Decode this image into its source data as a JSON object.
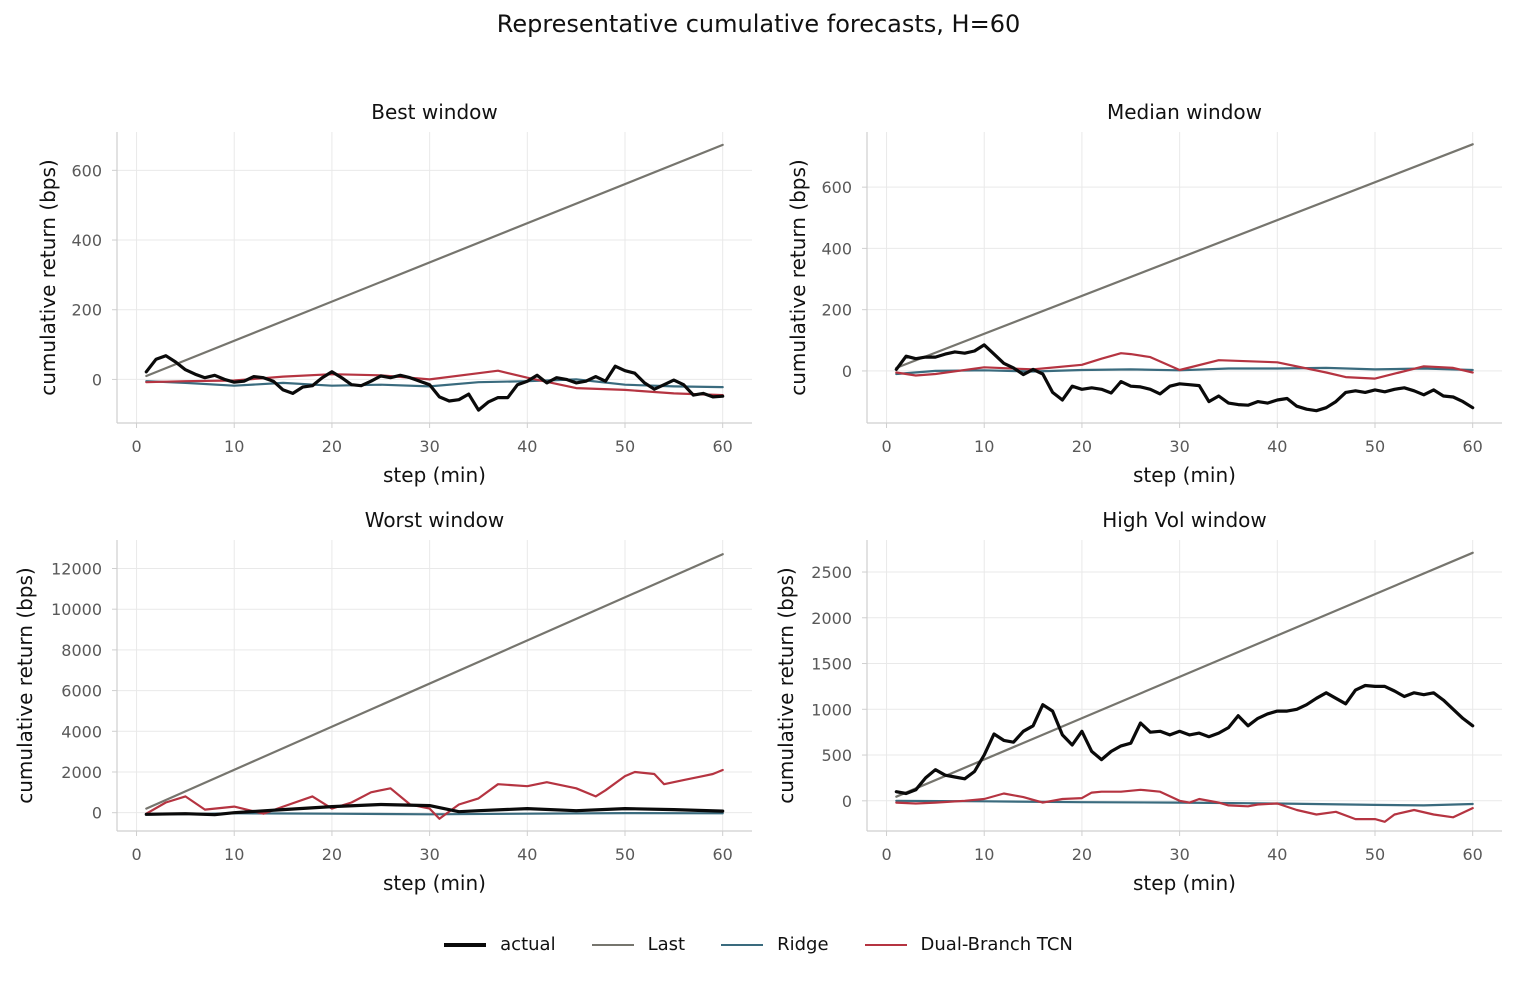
{
  "chart_data": [
    {
      "type": "line",
      "title": "Best window",
      "xlabel": "step (min)",
      "ylabel": "cumulative return (bps)",
      "xlim": [
        -2,
        63
      ],
      "ylim": [
        -125,
        710
      ],
      "xticks": [
        0,
        10,
        20,
        30,
        40,
        50,
        60
      ],
      "yticks": [
        0,
        200,
        400,
        600
      ],
      "grid": true,
      "series": [
        {
          "name": "actual",
          "x": [
            1,
            2,
            3,
            4,
            5,
            6,
            7,
            8,
            9,
            10,
            11,
            12,
            13,
            14,
            15,
            16,
            17,
            18,
            19,
            20,
            21,
            22,
            23,
            24,
            25,
            26,
            27,
            28,
            29,
            30,
            31,
            32,
            33,
            34,
            35,
            36,
            37,
            38,
            39,
            40,
            41,
            42,
            43,
            44,
            45,
            46,
            47,
            48,
            49,
            50,
            51,
            52,
            53,
            54,
            55,
            56,
            57,
            58,
            59,
            60
          ],
          "y": [
            22,
            58,
            68,
            50,
            28,
            15,
            5,
            12,
            0,
            -8,
            -5,
            8,
            5,
            -5,
            -30,
            -40,
            -22,
            -18,
            5,
            22,
            5,
            -15,
            -18,
            -5,
            10,
            5,
            12,
            5,
            -5,
            -15,
            -50,
            -62,
            -58,
            -42,
            -88,
            -65,
            -52,
            -52,
            -15,
            -5,
            12,
            -10,
            5,
            0,
            -10,
            -5,
            8,
            -5,
            38,
            25,
            18,
            -10,
            -28,
            -15,
            -2,
            -15,
            -45,
            -40,
            -50,
            -48
          ]
        },
        {
          "name": "Last",
          "x": [
            1,
            60
          ],
          "y": [
            10,
            673
          ]
        },
        {
          "name": "Ridge",
          "x": [
            1,
            5,
            10,
            15,
            20,
            25,
            30,
            35,
            40,
            45,
            50,
            55,
            60
          ],
          "y": [
            -5,
            -10,
            -18,
            -10,
            -18,
            -15,
            -20,
            -8,
            -5,
            0,
            -15,
            -20,
            -22
          ]
        },
        {
          "name": "Dual-Branch TCN",
          "x": [
            1,
            5,
            10,
            15,
            20,
            25,
            30,
            35,
            37,
            40,
            45,
            50,
            55,
            60
          ],
          "y": [
            -8,
            -5,
            -3,
            8,
            15,
            12,
            0,
            18,
            25,
            5,
            -25,
            -30,
            -40,
            -45
          ]
        }
      ]
    },
    {
      "type": "line",
      "title": "Median window",
      "xlabel": "step (min)",
      "ylabel": "cumulative return (bps)",
      "xlim": [
        -2,
        63
      ],
      "ylim": [
        -170,
        780
      ],
      "xticks": [
        0,
        10,
        20,
        30,
        40,
        50,
        60
      ],
      "yticks": [
        0,
        200,
        400,
        600
      ],
      "grid": true,
      "series": [
        {
          "name": "actual",
          "x": [
            1,
            2,
            3,
            4,
            5,
            6,
            7,
            8,
            9,
            10,
            11,
            12,
            13,
            14,
            15,
            16,
            17,
            18,
            19,
            20,
            21,
            22,
            23,
            24,
            25,
            26,
            27,
            28,
            29,
            30,
            31,
            32,
            33,
            34,
            35,
            36,
            37,
            38,
            39,
            40,
            41,
            42,
            43,
            44,
            45,
            46,
            47,
            48,
            49,
            50,
            51,
            52,
            53,
            54,
            55,
            56,
            57,
            58,
            59,
            60
          ],
          "y": [
            5,
            48,
            40,
            45,
            45,
            55,
            62,
            58,
            65,
            85,
            55,
            25,
            10,
            -12,
            5,
            -10,
            -70,
            -95,
            -50,
            -60,
            -55,
            -60,
            -72,
            -35,
            -50,
            -52,
            -60,
            -75,
            -50,
            -42,
            -45,
            -48,
            -100,
            -82,
            -105,
            -110,
            -112,
            -100,
            -105,
            -95,
            -90,
            -115,
            -125,
            -130,
            -120,
            -100,
            -70,
            -65,
            -70,
            -62,
            -68,
            -60,
            -55,
            -65,
            -78,
            -62,
            -82,
            -85,
            -100,
            -120
          ]
        },
        {
          "name": "Last",
          "x": [
            1,
            60
          ],
          "y": [
            10,
            740
          ]
        },
        {
          "name": "Ridge",
          "x": [
            1,
            5,
            10,
            15,
            20,
            25,
            30,
            35,
            40,
            45,
            50,
            55,
            60
          ],
          "y": [
            -10,
            0,
            2,
            -2,
            3,
            5,
            2,
            8,
            8,
            10,
            5,
            8,
            3
          ]
        },
        {
          "name": "Dual-Branch TCN",
          "x": [
            1,
            3,
            5,
            10,
            15,
            20,
            22,
            24,
            25,
            27,
            30,
            34,
            40,
            45,
            47,
            50,
            55,
            58,
            60
          ],
          "y": [
            -5,
            -15,
            -10,
            12,
            5,
            20,
            40,
            58,
            55,
            45,
            3,
            35,
            28,
            -5,
            -20,
            -25,
            15,
            10,
            -5
          ]
        }
      ]
    },
    {
      "type": "line",
      "title": "Worst window",
      "xlabel": "step (min)",
      "ylabel": "cumulative return (bps)",
      "xlim": [
        -2,
        63
      ],
      "ylim": [
        -900,
        13400
      ],
      "xticks": [
        0,
        10,
        20,
        30,
        40,
        50,
        60
      ],
      "yticks": [
        0,
        2000,
        4000,
        6000,
        8000,
        10000,
        12000
      ],
      "grid": true,
      "series": [
        {
          "name": "actual",
          "x": [
            1,
            5,
            8,
            10,
            15,
            20,
            25,
            30,
            33,
            35,
            40,
            45,
            50,
            55,
            60
          ],
          "y": [
            -80,
            -50,
            -100,
            0,
            150,
            300,
            400,
            350,
            50,
            100,
            200,
            100,
            200,
            150,
            80
          ]
        },
        {
          "name": "Last",
          "x": [
            1,
            60
          ],
          "y": [
            200,
            12700
          ]
        },
        {
          "name": "Ridge",
          "x": [
            1,
            10,
            20,
            30,
            40,
            50,
            60
          ],
          "y": [
            -100,
            -30,
            -50,
            -80,
            -50,
            -20,
            -30
          ]
        },
        {
          "name": "Dual-Branch TCN",
          "x": [
            1,
            3,
            5,
            7,
            10,
            13,
            15,
            18,
            20,
            22,
            24,
            26,
            28,
            30,
            31,
            33,
            35,
            37,
            40,
            42,
            45,
            47,
            48,
            50,
            51,
            53,
            54,
            56,
            58,
            59,
            60
          ],
          "y": [
            -50,
            500,
            800,
            150,
            300,
            -50,
            300,
            800,
            200,
            500,
            1000,
            1200,
            400,
            200,
            -300,
            400,
            700,
            1400,
            1300,
            1500,
            1200,
            800,
            1100,
            1800,
            2000,
            1900,
            1400,
            1600,
            1800,
            1900,
            2100
          ]
        }
      ]
    },
    {
      "type": "line",
      "title": "High Vol window",
      "xlabel": "step (min)",
      "ylabel": "cumulative return (bps)",
      "xlim": [
        -2,
        63
      ],
      "ylim": [
        -330,
        2850
      ],
      "xticks": [
        0,
        10,
        20,
        30,
        40,
        50,
        60
      ],
      "yticks": [
        0,
        500,
        1000,
        1500,
        2000,
        2500
      ],
      "grid": true,
      "series": [
        {
          "name": "actual",
          "x": [
            1,
            2,
            3,
            4,
            5,
            6,
            7,
            8,
            9,
            10,
            11,
            12,
            13,
            14,
            15,
            16,
            17,
            18,
            19,
            20,
            21,
            22,
            23,
            24,
            25,
            26,
            27,
            28,
            29,
            30,
            31,
            32,
            33,
            34,
            35,
            36,
            37,
            38,
            39,
            40,
            41,
            42,
            43,
            44,
            45,
            46,
            47,
            48,
            49,
            50,
            51,
            52,
            53,
            54,
            55,
            56,
            57,
            58,
            59,
            60
          ],
          "y": [
            100,
            80,
            120,
            250,
            340,
            280,
            260,
            240,
            320,
            500,
            730,
            660,
            640,
            760,
            820,
            1050,
            980,
            720,
            610,
            760,
            540,
            450,
            540,
            600,
            630,
            850,
            750,
            760,
            720,
            760,
            720,
            740,
            700,
            740,
            800,
            930,
            820,
            900,
            950,
            980,
            980,
            1000,
            1050,
            1120,
            1180,
            1120,
            1060,
            1210,
            1260,
            1250,
            1250,
            1200,
            1140,
            1180,
            1160,
            1180,
            1100,
            1000,
            900,
            820
          ]
        },
        {
          "name": "Last",
          "x": [
            1,
            60
          ],
          "y": [
            45,
            2710
          ]
        },
        {
          "name": "Ridge",
          "x": [
            1,
            10,
            20,
            30,
            40,
            50,
            55,
            60
          ],
          "y": [
            0,
            -5,
            -15,
            -20,
            -30,
            -45,
            -50,
            -35
          ]
        },
        {
          "name": "Dual-Branch TCN",
          "x": [
            1,
            3,
            5,
            8,
            10,
            12,
            14,
            16,
            18,
            20,
            21,
            22,
            24,
            26,
            28,
            30,
            31,
            32,
            34,
            35,
            37,
            38,
            40,
            42,
            44,
            46,
            48,
            50,
            51,
            52,
            54,
            56,
            58,
            60
          ],
          "y": [
            -20,
            -30,
            -20,
            0,
            20,
            80,
            40,
            -20,
            20,
            30,
            90,
            100,
            100,
            120,
            100,
            0,
            -20,
            20,
            -20,
            -50,
            -60,
            -40,
            -30,
            -100,
            -150,
            -120,
            -200,
            -200,
            -230,
            -150,
            -100,
            -150,
            -180,
            -80
          ]
        }
      ]
    }
  ],
  "figure": {
    "suptitle": "Representative cumulative forecasts, H=60",
    "colors": {
      "actual": "#0a0a0a",
      "Last": "#76756e",
      "Ridge": "#3a6b7e",
      "Dual-Branch TCN": "#b53441",
      "grid": "#e9e9e9",
      "spine": "#cfcfcf",
      "tick_label": "#595959"
    },
    "legend": {
      "placement": "bottom-center",
      "entries": [
        "actual",
        "Last",
        "Ridge",
        "Dual-Branch TCN"
      ]
    }
  }
}
